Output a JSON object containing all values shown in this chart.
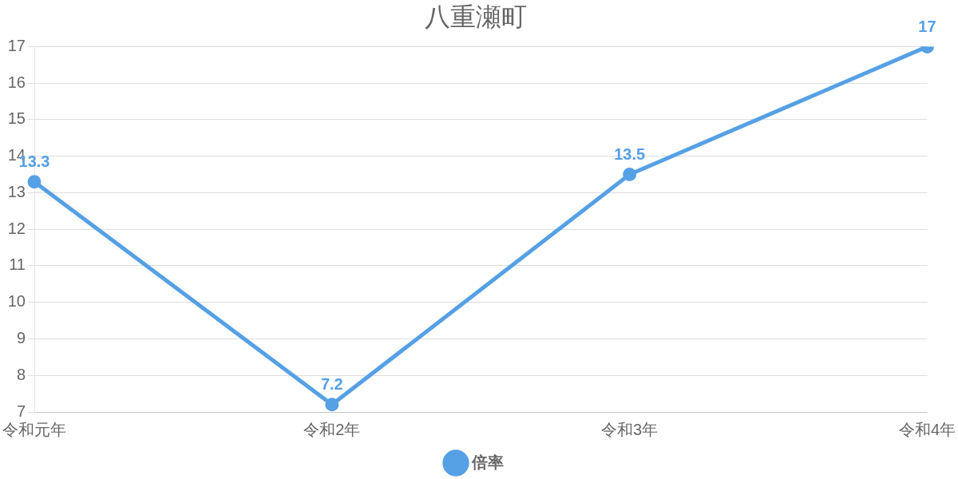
{
  "chart_data": {
    "type": "line",
    "title": "八重瀬町",
    "categories": [
      "令和元年",
      "令和2年",
      "令和3年",
      "令和4年"
    ],
    "series": [
      {
        "name": "倍率",
        "color": "#56a0e5",
        "values": [
          13.3,
          7.2,
          13.5,
          17
        ]
      }
    ],
    "ylim": [
      7,
      17
    ],
    "yticks": [
      7,
      8,
      9,
      10,
      11,
      12,
      13,
      14,
      15,
      16,
      17
    ],
    "grid": "y",
    "legend": "bottom",
    "marker": "circle",
    "line_style": "solid",
    "data_labels": true
  }
}
